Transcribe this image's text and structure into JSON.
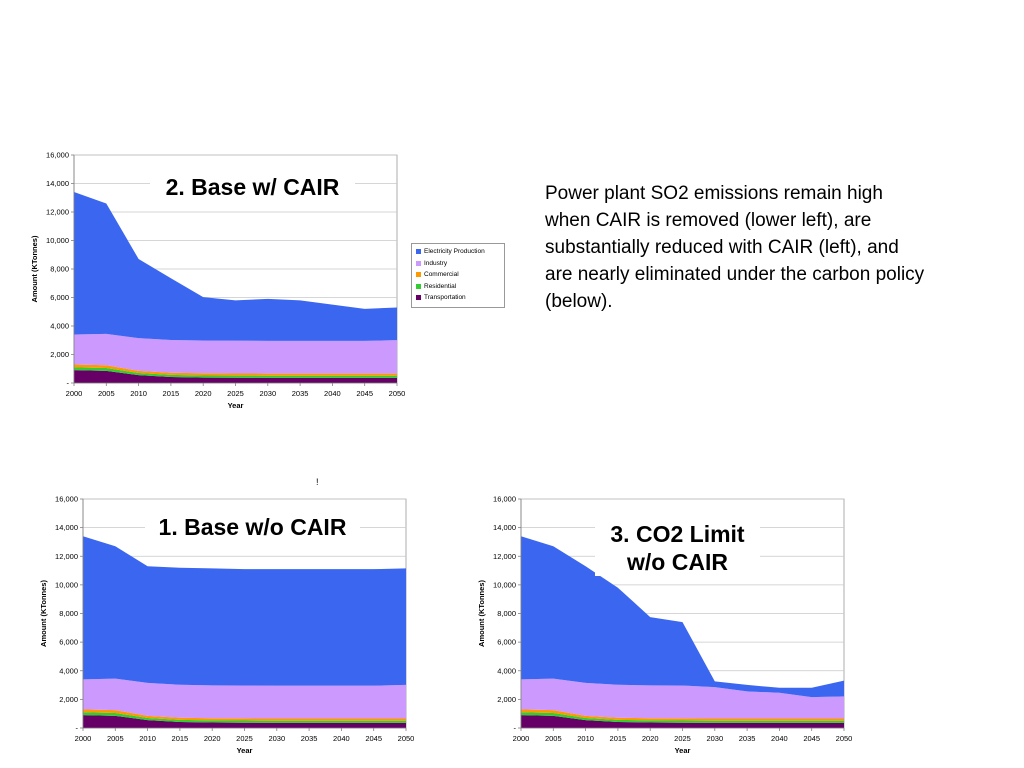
{
  "description_text": "Power plant SO2 emissions remain high when CAIR is removed (lower left), are substantially reduced with CAIR (left), and are nearly eliminated under the carbon policy (below).",
  "stray_mark": "!",
  "legend": {
    "items": [
      {
        "label": "Electricity Production",
        "color": "#3a66f0"
      },
      {
        "label": "Industry",
        "color": "#cc99ff"
      },
      {
        "label": "Commercial",
        "color": "#ff9900"
      },
      {
        "label": "Residential",
        "color": "#33cc33"
      },
      {
        "label": "Transportation",
        "color": "#660066"
      }
    ]
  },
  "chart_data": [
    {
      "type": "area",
      "stacked": true,
      "title": "2. Base w/ CAIR",
      "xlabel": "Year",
      "ylabel": "Amount (KTonnes)",
      "ylim": [
        0,
        16000
      ],
      "yticks": [
        0,
        2000,
        4000,
        6000,
        8000,
        10000,
        12000,
        14000,
        16000
      ],
      "ytick_labels": [
        "-",
        "2,000",
        "4,000",
        "6,000",
        "8,000",
        "10,000",
        "12,000",
        "14,000",
        "16,000"
      ],
      "categories": [
        "2000",
        "2005",
        "2010",
        "2015",
        "2020",
        "2025",
        "2030",
        "2035",
        "2040",
        "2045",
        "2050"
      ],
      "grid": true,
      "legend_position": "right",
      "series": [
        {
          "name": "Transportation",
          "color": "#660066",
          "values": [
            900,
            850,
            550,
            420,
            380,
            370,
            360,
            360,
            360,
            360,
            360
          ]
        },
        {
          "name": "Residential",
          "color": "#33cc33",
          "values": [
            200,
            200,
            150,
            150,
            150,
            150,
            150,
            150,
            150,
            150,
            150
          ]
        },
        {
          "name": "Commercial",
          "color": "#ff9900",
          "values": [
            200,
            200,
            150,
            150,
            150,
            150,
            150,
            150,
            150,
            150,
            150
          ]
        },
        {
          "name": "Industry",
          "color": "#cc99ff",
          "values": [
            2100,
            2200,
            2300,
            2300,
            2300,
            2300,
            2300,
            2300,
            2300,
            2300,
            2350
          ]
        },
        {
          "name": "Electricity Production",
          "color": "#3a66f0",
          "values": [
            10000,
            9150,
            5550,
            4330,
            3050,
            2830,
            2940,
            2840,
            2540,
            2240,
            2290
          ]
        }
      ]
    },
    {
      "type": "area",
      "stacked": true,
      "title": "1. Base w/o CAIR",
      "xlabel": "Year",
      "ylabel": "Amount (KTonnes)",
      "ylim": [
        0,
        16000
      ],
      "yticks": [
        0,
        2000,
        4000,
        6000,
        8000,
        10000,
        12000,
        14000,
        16000
      ],
      "ytick_labels": [
        "-",
        "2,000",
        "4,000",
        "6,000",
        "8,000",
        "10,000",
        "12,000",
        "14,000",
        "16,000"
      ],
      "categories": [
        "2000",
        "2005",
        "2010",
        "2015",
        "2020",
        "2025",
        "2030",
        "2035",
        "2040",
        "2045",
        "2050"
      ],
      "grid": true,
      "series": [
        {
          "name": "Transportation",
          "color": "#660066",
          "values": [
            900,
            850,
            550,
            420,
            380,
            370,
            360,
            360,
            360,
            360,
            360
          ]
        },
        {
          "name": "Residential",
          "color": "#33cc33",
          "values": [
            200,
            200,
            150,
            150,
            150,
            150,
            150,
            150,
            150,
            150,
            150
          ]
        },
        {
          "name": "Commercial",
          "color": "#ff9900",
          "values": [
            200,
            200,
            150,
            150,
            150,
            150,
            150,
            150,
            150,
            150,
            150
          ]
        },
        {
          "name": "Industry",
          "color": "#cc99ff",
          "values": [
            2100,
            2200,
            2300,
            2300,
            2300,
            2300,
            2300,
            2300,
            2300,
            2300,
            2350
          ]
        },
        {
          "name": "Electricity Production",
          "color": "#3a66f0",
          "values": [
            10000,
            9250,
            8150,
            8180,
            8170,
            8130,
            8140,
            8140,
            8140,
            8140,
            8140
          ]
        }
      ]
    },
    {
      "type": "area",
      "stacked": true,
      "title": "3. CO2 Limit\nw/o CAIR",
      "xlabel": "Year",
      "ylabel": "Amount (KTonnes)",
      "ylim": [
        0,
        16000
      ],
      "yticks": [
        0,
        2000,
        4000,
        6000,
        8000,
        10000,
        12000,
        14000,
        16000
      ],
      "ytick_labels": [
        "-",
        "2,000",
        "4,000",
        "6,000",
        "8,000",
        "10,000",
        "12,000",
        "14,000",
        "16,000"
      ],
      "categories": [
        "2000",
        "2005",
        "2010",
        "2015",
        "2020",
        "2025",
        "2030",
        "2035",
        "2040",
        "2045",
        "2050"
      ],
      "grid": true,
      "series": [
        {
          "name": "Transportation",
          "color": "#660066",
          "values": [
            900,
            850,
            550,
            420,
            380,
            370,
            360,
            360,
            360,
            360,
            360
          ]
        },
        {
          "name": "Residential",
          "color": "#33cc33",
          "values": [
            200,
            200,
            150,
            150,
            150,
            150,
            150,
            150,
            150,
            150,
            150
          ]
        },
        {
          "name": "Commercial",
          "color": "#ff9900",
          "values": [
            200,
            200,
            150,
            150,
            150,
            150,
            150,
            150,
            150,
            150,
            150
          ]
        },
        {
          "name": "Industry",
          "color": "#cc99ff",
          "values": [
            2100,
            2200,
            2300,
            2300,
            2300,
            2300,
            2200,
            1900,
            1800,
            1500,
            1550
          ]
        },
        {
          "name": "Electricity Production",
          "color": "#3a66f0",
          "values": [
            10000,
            9250,
            8150,
            6780,
            4770,
            4430,
            400,
            450,
            350,
            650,
            1100
          ]
        }
      ]
    }
  ]
}
